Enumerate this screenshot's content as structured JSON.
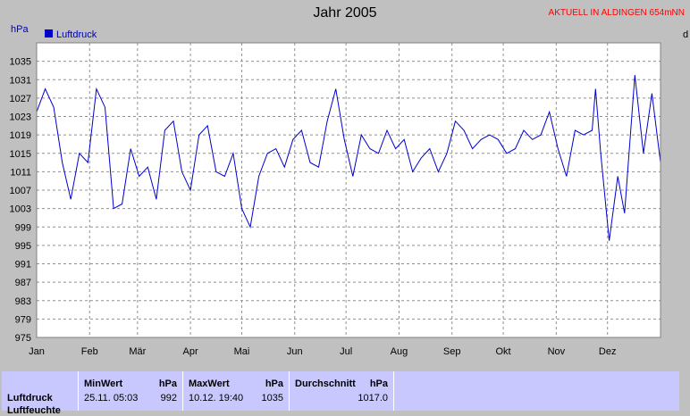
{
  "title": "Jahr 2005",
  "badge": "AKTUELL IN ALDINGEN 654mNN",
  "edge_fragment": "d",
  "chart_data": {
    "type": "line",
    "title": "Jahr 2005",
    "ylabel": "hPa",
    "ylim": [
      975,
      1039
    ],
    "yticks": [
      975,
      979,
      983,
      987,
      991,
      995,
      999,
      1003,
      1007,
      1011,
      1015,
      1019,
      1023,
      1027,
      1031,
      1035
    ],
    "months": [
      "Jan",
      "Feb",
      "Mär",
      "Apr",
      "Mai",
      "Jun",
      "Jul",
      "Aug",
      "Sep",
      "Okt",
      "Nov",
      "Dez"
    ],
    "legend": {
      "label": "Luftdruck",
      "position": "top-left",
      "color": "#0000cc"
    },
    "grid": true,
    "series": [
      {
        "name": "Luftdruck",
        "color": "#0000cc",
        "x": [
          0,
          5,
          10,
          15,
          20,
          25,
          30,
          35,
          40,
          45,
          50,
          55,
          60,
          65,
          70,
          75,
          80,
          85,
          90,
          95,
          100,
          105,
          110,
          115,
          120,
          125,
          130,
          135,
          140,
          145,
          150,
          155,
          160,
          165,
          170,
          175,
          180,
          185,
          190,
          195,
          200,
          205,
          210,
          215,
          220,
          225,
          230,
          235,
          240,
          245,
          250,
          255,
          260,
          265,
          270,
          275,
          280,
          285,
          290,
          295,
          300,
          305,
          310,
          315,
          320,
          325,
          327,
          330,
          335,
          340,
          344,
          350,
          355,
          360,
          365
        ],
        "values": [
          1024,
          1029,
          1025,
          1013,
          1005,
          1015,
          1013,
          1029,
          1025,
          1003,
          1004,
          1016,
          1010,
          1012,
          1005,
          1020,
          1022,
          1011,
          1007,
          1019,
          1021,
          1011,
          1010,
          1015,
          1003,
          999,
          1010,
          1015,
          1016,
          1012,
          1018,
          1020,
          1013,
          1012,
          1022,
          1029,
          1018,
          1010,
          1019,
          1016,
          1015,
          1020,
          1016,
          1018,
          1011,
          1014,
          1016,
          1011,
          1015,
          1022,
          1020,
          1016,
          1018,
          1019,
          1018,
          1015,
          1016,
          1020,
          1018,
          1019,
          1024,
          1016,
          1010,
          1020,
          1019,
          1020,
          1029,
          1015,
          996,
          1010,
          1002,
          1032,
          1015,
          1028,
          1013
        ]
      }
    ]
  },
  "stats": {
    "min_label": "MinWert",
    "min_unit": "hPa",
    "min_date": "25.11.  05:03",
    "min_value": "992",
    "max_label": "MaxWert",
    "max_unit": "hPa",
    "max_date": "10.12.  19:40",
    "max_value": "1035",
    "avg_label": "Durchschnitt",
    "avg_unit": "hPa",
    "avg_value": "1017.0",
    "row1": "Luftdruck",
    "row2": "Luftfeuchte"
  }
}
